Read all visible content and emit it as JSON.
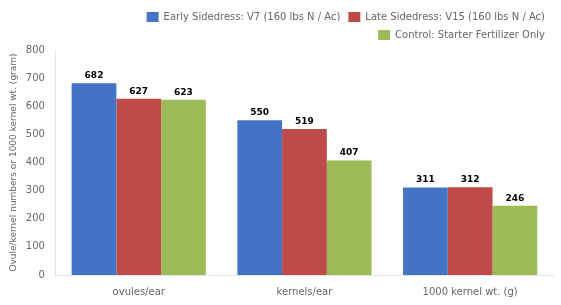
{
  "chart_data": {
    "type": "bar",
    "categories": [
      "ovules/ear",
      "kernels/ear",
      "1000 kernel wt. (g)"
    ],
    "series": [
      {
        "name": "Early Sidedress: V7 (160 lbs N / Ac)",
        "color": "#4472C4",
        "values": [
          682,
          550,
          311
        ]
      },
      {
        "name": "Late Sidedress: V15 (160 lbs N / Ac)",
        "color": "#BE4B48",
        "values": [
          627,
          519,
          312
        ]
      },
      {
        "name": "Control: Starter Fertilizer Only",
        "color": "#9BBB59",
        "values": [
          623,
          407,
          246
        ]
      }
    ],
    "ylabel": "Ovule/kernel numbers or 1000 kernel wt. (gram)",
    "ylim": [
      0,
      800
    ],
    "yticks": [
      0,
      100,
      200,
      300,
      400,
      500,
      600,
      700,
      800
    ],
    "grid": false,
    "legend": "upper right",
    "data_labels": true
  }
}
